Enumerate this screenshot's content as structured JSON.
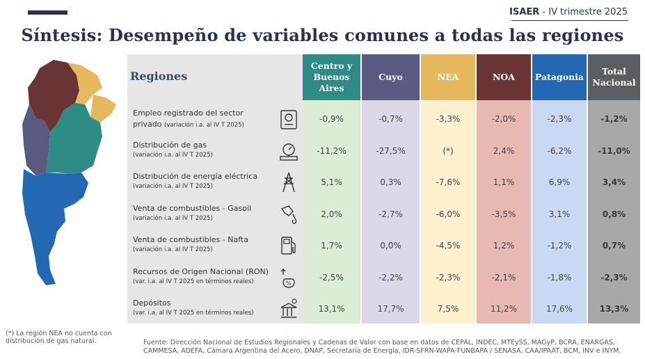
{
  "header": {
    "brand": "ISAER",
    "separator": " - ",
    "period": "IV trimestre 2025",
    "title": "Síntesis: Desempeño de variables comunes a todas las regiones"
  },
  "table": {
    "corner_label": "Regiones",
    "columns": [
      {
        "label": "Centro y Buenos Aires",
        "bg": "#2e8b85",
        "fg": "#ffffff",
        "cell_bg": "#dbeed5"
      },
      {
        "label": "Cuyo",
        "bg": "#5b5a82",
        "fg": "#ffffff",
        "cell_bg": "#dcd8ea"
      },
      {
        "label": "NEA",
        "bg": "#e5b85e",
        "fg": "#ffffff",
        "cell_bg": "#fdf0cf"
      },
      {
        "label": "NOA",
        "bg": "#6b3434",
        "fg": "#ffffff",
        "cell_bg": "#e8b8b3"
      },
      {
        "label": "Patagonia",
        "bg": "#2468b3",
        "fg": "#ffffff",
        "cell_bg": "#c9d9f3"
      },
      {
        "label": "Total Nacional",
        "bg": "#5a5d62",
        "fg": "#ffffff",
        "cell_bg": "#a8a8a8"
      }
    ],
    "rows": [
      {
        "name": "Empleo registrado del sector",
        "name2": "privado",
        "sub": "(variación i.a. al IV T 2025)",
        "icon": "employee-document-icon",
        "values": [
          "-0,9%",
          "-0,7%",
          "-3,3%",
          "-2,0%",
          "-2,3%",
          "-1,2%"
        ]
      },
      {
        "name": "Distribución de gas",
        "name2": "",
        "sub": "(variación i.a. al IV T 2025)",
        "icon": "gas-valve-icon",
        "values": [
          "-11,2%",
          "-27,5%",
          "(*)",
          "2,4%",
          "-6,2%",
          "-11,0%"
        ]
      },
      {
        "name": "Distribución de energía eléctrica",
        "name2": "",
        "sub": "(variación i.a. al IV T 2025)",
        "icon": "power-tower-icon",
        "values": [
          "5,1%",
          "0,3%",
          "-7,6%",
          "1,1%",
          "6,9%",
          "3,4%"
        ]
      },
      {
        "name": "Venta de combustibles - Gasoil",
        "name2": "",
        "sub": "(variación i.a. al IV T 2025)",
        "icon": "fuel-nozzle-icon",
        "values": [
          "2,0%",
          "-2,7%",
          "-6,0%",
          "-3,5%",
          "3,1%",
          "0,8%"
        ]
      },
      {
        "name": "Venta de combustibles - Nafta",
        "name2": "",
        "sub": "(variación i.a. al IV T 2025)",
        "icon": "fuel-pump-icon",
        "values": [
          "1,7%",
          "0,0%",
          "-4,5%",
          "1,2%",
          "-1,2%",
          "0,7%"
        ]
      },
      {
        "name": "Recursos de Origen Nacional (RON)",
        "name2": "",
        "sub": "(var. i.a. al IV T 2025 en términos reales)",
        "icon": "money-percent-icon",
        "values": [
          "-2,5%",
          "-2,2%",
          "-2,3%",
          "-2,1%",
          "-1,8%",
          "-2,3%"
        ]
      },
      {
        "name": "Depósitos",
        "name2": "",
        "sub": "(var. i.a. al IV T 2025 en términos reales)",
        "icon": "bank-deposit-icon",
        "values": [
          "13,1%",
          "17,7%",
          "7,5%",
          "11,2%",
          "17,6%",
          "13,3%"
        ]
      }
    ]
  },
  "footnote": "(*) La región NEA no cuenta con distribución de gas natural.",
  "source": "Fuente: Dirección Nacional de Estudios Regionales y Cadenas de Valor con base en datos de CEPAL, INDEC, MTEySS, MAGyP, BCRA, ENARGAS, CAMMESA, ADEFA, Cámara Argentina del Acero, DNAP, Secretaría de Energía, IDR-SFRN-WAPA-FUNBAPA / SENASA, CAA/IPAAT, BCM, INV e INYM.",
  "map": {
    "icon": "argentina-regions-map",
    "colors": {
      "noa": "#6b3434",
      "nea": "#e5b85e",
      "cuyo": "#5b5a82",
      "centro": "#2e8b85",
      "patagonia": "#2468b3"
    }
  }
}
